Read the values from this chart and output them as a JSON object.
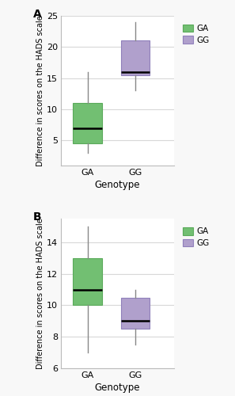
{
  "panel_A": {
    "GA": {
      "whislo": 3.0,
      "q1": 4.5,
      "med": 7.0,
      "q3": 11.0,
      "whishi": 16.0
    },
    "GG": {
      "whislo": 13.0,
      "q1": 15.5,
      "med": 16.0,
      "q3": 21.0,
      "whishi": 24.0
    },
    "ylim": [
      1,
      25
    ],
    "yticks": [
      5,
      10,
      15,
      20,
      25
    ],
    "ylabel": "Difference in scores on the HADS scale",
    "xlabel": "Genotype",
    "label": "A"
  },
  "panel_B": {
    "GA": {
      "whislo": 7.0,
      "q1": 10.0,
      "med": 11.0,
      "q3": 13.0,
      "whishi": 15.0
    },
    "GG": {
      "whislo": 7.5,
      "q1": 8.5,
      "med": 9.0,
      "q3": 10.5,
      "whishi": 11.0
    },
    "ylim": [
      6,
      15.5
    ],
    "yticks": [
      6,
      8,
      10,
      12,
      14
    ],
    "ylabel": "Difference in scores on the HADS scale",
    "xlabel": "Genotype",
    "label": "B"
  },
  "categories": [
    "GA",
    "GG"
  ],
  "color_GA": "#72bf72",
  "color_GG": "#b0a0cc",
  "edge_GA": "#5aaa5a",
  "edge_GG": "#9080bb",
  "bg_color": "#ffffff",
  "fig_bg_color": "#f8f8f8",
  "grid_color": "#d8d8d8",
  "box_width": 0.6,
  "legend_GA": "GA",
  "legend_GG": "GG"
}
